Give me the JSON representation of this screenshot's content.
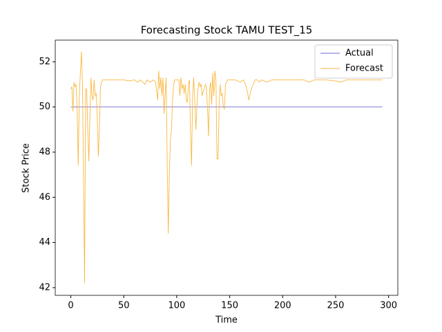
{
  "chart_data": {
    "type": "line",
    "title": "Forecasting Stock TAMU TEST_15",
    "xlabel": "Time",
    "ylabel": "Stock Price",
    "xlim": [
      -14.7,
      308.7
    ],
    "ylim": [
      41.66,
      52.96
    ],
    "xticks": [
      0,
      50,
      100,
      150,
      200,
      250,
      300
    ],
    "yticks": [
      42,
      44,
      46,
      48,
      50,
      52
    ],
    "legend": "upper right",
    "series": [
      {
        "name": "Actual",
        "color": "#6a6ad8",
        "x": [
          0,
          294
        ],
        "values": [
          50,
          50
        ]
      },
      {
        "name": "Forecast",
        "color": "#f9b740",
        "x": [
          0,
          1,
          2,
          3,
          4,
          5,
          6,
          7,
          8,
          9,
          10,
          11,
          12,
          13,
          14,
          15,
          16,
          17,
          18,
          19,
          20,
          21,
          22,
          23,
          24,
          25,
          26,
          27,
          28,
          29,
          30,
          35,
          40,
          45,
          50,
          55,
          60,
          63,
          66,
          68,
          70,
          72,
          75,
          78,
          80,
          82,
          83,
          84,
          85,
          86,
          87,
          88,
          89,
          90,
          91,
          92,
          93,
          94,
          95,
          96,
          97,
          98,
          100,
          102,
          103,
          104,
          105,
          106,
          107,
          108,
          109,
          110,
          111,
          112,
          113,
          114,
          115,
          116,
          117,
          118,
          119,
          120,
          121,
          122,
          123,
          124,
          125,
          126,
          127,
          128,
          129,
          130,
          131,
          132,
          133,
          134,
          135,
          136,
          137,
          138,
          139,
          140,
          141,
          142,
          143,
          144,
          145,
          146,
          148,
          150,
          155,
          160,
          163,
          165,
          167,
          168,
          170,
          172,
          174,
          176,
          178,
          180,
          185,
          190,
          200,
          210,
          220,
          225,
          230,
          240,
          250,
          255,
          260,
          270,
          280,
          294
        ],
        "values": [
          50.8,
          50.9,
          49.8,
          51.1,
          50.9,
          51.0,
          49.8,
          47.4,
          50.5,
          51.5,
          52.45,
          51.0,
          47.0,
          42.2,
          50.8,
          50.8,
          49.0,
          47.6,
          49.5,
          51.3,
          50.5,
          50.3,
          51.2,
          50.5,
          50.6,
          49.5,
          47.8,
          49.0,
          50.9,
          51.1,
          51.2,
          51.2,
          51.2,
          51.2,
          51.2,
          51.15,
          51.2,
          51.1,
          51.2,
          51.1,
          51.0,
          51.2,
          51.1,
          51.2,
          51.1,
          50.3,
          51.6,
          50.8,
          51.3,
          50.5,
          51.3,
          49.7,
          50.5,
          51.3,
          47.5,
          44.4,
          47.0,
          48.5,
          49.0,
          50.2,
          51.0,
          51.2,
          51.2,
          51.2,
          50.5,
          51.3,
          50.8,
          51.0,
          50.6,
          51.0,
          50.3,
          50.2,
          51.0,
          51.2,
          49.0,
          47.4,
          50.5,
          51.3,
          50.4,
          49.0,
          50.0,
          50.8,
          51.1,
          50.9,
          51.0,
          50.5,
          50.7,
          50.8,
          51.0,
          50.9,
          50.0,
          48.7,
          50.8,
          51.1,
          50.1,
          51.5,
          50.5,
          51.6,
          51.2,
          47.7,
          47.7,
          50.0,
          51.0,
          50.5,
          50.6,
          50.0,
          49.9,
          51.0,
          51.2,
          51.2,
          51.2,
          51.1,
          51.2,
          51.0,
          50.6,
          50.3,
          50.7,
          51.0,
          51.2,
          51.2,
          51.1,
          51.2,
          51.1,
          51.2,
          51.2,
          51.2,
          51.2,
          51.1,
          51.2,
          51.2,
          51.15,
          51.1,
          51.2,
          51.2,
          51.2,
          51.2
        ]
      }
    ]
  }
}
